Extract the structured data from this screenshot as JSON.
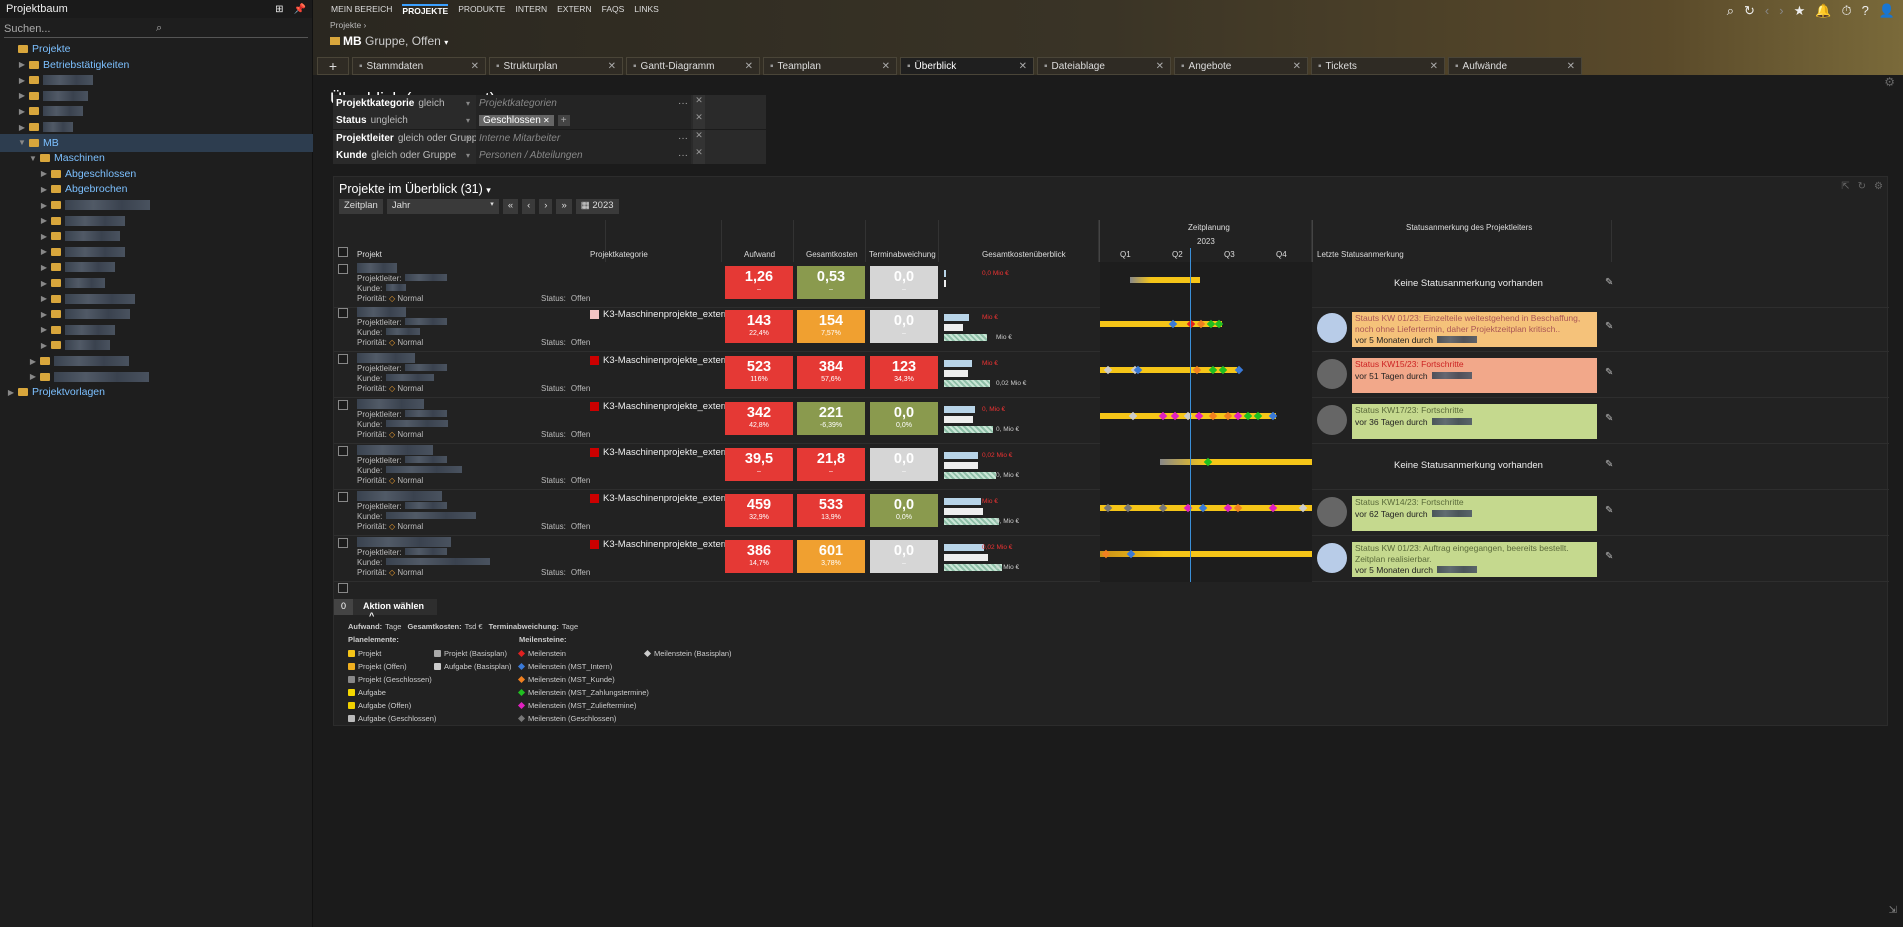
{
  "sidebar": {
    "title": "Projektbaum",
    "search_placeholder": "Suchen...",
    "items": [
      {
        "label": "Projekte",
        "indent": 0,
        "arrow": "",
        "blur": 0
      },
      {
        "label": "Betriebstätigkeiten",
        "indent": 1,
        "arrow": "▶",
        "blur": 0
      },
      {
        "label": "",
        "indent": 1,
        "arrow": "▶",
        "blur": 50
      },
      {
        "label": "",
        "indent": 1,
        "arrow": "▶",
        "blur": 45
      },
      {
        "label": "",
        "indent": 1,
        "arrow": "▶",
        "blur": 40
      },
      {
        "label": "",
        "indent": 1,
        "arrow": "▶",
        "blur": 30
      },
      {
        "label": "MB",
        "indent": 1,
        "arrow": "▼",
        "blur": 0,
        "selected": true
      },
      {
        "label": "Maschinen",
        "indent": 2,
        "arrow": "▼",
        "blur": 0
      },
      {
        "label": "Abgeschlossen",
        "indent": 3,
        "arrow": "▶",
        "blur": 0
      },
      {
        "label": "Abgebrochen",
        "indent": 3,
        "arrow": "▶",
        "blur": 0
      },
      {
        "label": "",
        "indent": 3,
        "arrow": "▶",
        "blur": 85
      },
      {
        "label": "",
        "indent": 3,
        "arrow": "▶",
        "blur": 60
      },
      {
        "label": "",
        "indent": 3,
        "arrow": "▶",
        "blur": 55
      },
      {
        "label": "",
        "indent": 3,
        "arrow": "▶",
        "blur": 60
      },
      {
        "label": "",
        "indent": 3,
        "arrow": "▶",
        "blur": 50
      },
      {
        "label": "",
        "indent": 3,
        "arrow": "▶",
        "blur": 40
      },
      {
        "label": "",
        "indent": 3,
        "arrow": "▶",
        "blur": 70
      },
      {
        "label": "",
        "indent": 3,
        "arrow": "▶",
        "blur": 65
      },
      {
        "label": "",
        "indent": 3,
        "arrow": "▶",
        "blur": 50
      },
      {
        "label": "",
        "indent": 3,
        "arrow": "▶",
        "blur": 45
      },
      {
        "label": "",
        "indent": 2,
        "arrow": "▶",
        "blur": 75
      },
      {
        "label": "",
        "indent": 2,
        "arrow": "▶",
        "blur": 95
      },
      {
        "label": "Projektvorlagen",
        "indent": 0,
        "arrow": "▶",
        "blur": 0
      }
    ]
  },
  "topbar": {
    "menu": [
      "MEIN BEREICH",
      "PROJEKTE",
      "PRODUKTE",
      "INTERN",
      "EXTERN",
      "FAQS",
      "LINKS"
    ],
    "active_menu": "PROJEKTE",
    "breadcrumb": "Projekte ›",
    "project_title": "MB",
    "project_sub": "Gruppe, Offen",
    "tabs": [
      "Stammdaten",
      "Strukturplan",
      "Gantt-Diagramm",
      "Teamplan",
      "Überblick",
      "Dateiablage",
      "Angebote",
      "Tickets",
      "Aufwände"
    ],
    "active_tab": "Überblick"
  },
  "page": {
    "title": "Überblick (angepasst)",
    "filters": [
      {
        "key": "Projektkategorie",
        "op": "gleich",
        "value": "Projektkategorien"
      },
      {
        "key": "Status",
        "op": "ungleich",
        "value": "",
        "chip": "Geschlossen"
      },
      {
        "key": "Projektleiter",
        "op": "gleich oder Gruppe",
        "value": "Interne Mitarbeiter"
      },
      {
        "key": "Kunde",
        "op": "gleich oder Gruppe",
        "value": "Personen / Abteilungen"
      }
    ]
  },
  "panel": {
    "title": "Projekte im Überblick (31)",
    "view_label": "Zeitplan",
    "period": "Jahr",
    "year": "2023",
    "headers": {
      "project": "Projekt",
      "category": "Projektkategorie",
      "effort": "Aufwand",
      "cost": "Gesamtkosten",
      "deviation": "Terminabweichung",
      "cost_overview": "Gesamtkostenüberblick",
      "timeline": "Zeitplanung",
      "timeline_year": "2023",
      "quarters": [
        "Q1",
        "Q2",
        "Q3",
        "Q4"
      ],
      "status_group": "Statusanmerkung des Projektleiters",
      "last_status": "Letzte Statusanmerkung"
    },
    "labels": {
      "leader": "Projektleiter:",
      "customer": "Kunde:",
      "priority": "Priorität:",
      "priority_val": "Normal",
      "status": "Status:",
      "status_val": "Offen"
    },
    "rows": [
      {
        "category": "",
        "cat_color": "",
        "effort": "1,26",
        "effort_sub": "–",
        "effort_color": "#e53935",
        "cost": "0,53",
        "cost_sub": "–",
        "cost_color": "#8a9a4e",
        "dev": "0,0",
        "dev_sub": "–",
        "dev_color": "#d6d6d6",
        "ovl": [
          "0,0 Mio €"
        ],
        "note": "Keine Statusanmerkung vorhanden",
        "note_color": "",
        "note_time": ""
      },
      {
        "category": "K3-Maschinenprojekte_extern...",
        "cat_color": "#f4c6c6",
        "effort": "143",
        "effort_sub": "22,4%",
        "effort_color": "#e53935",
        "cost": "154",
        "cost_sub": "7,57%",
        "cost_color": "#f0a030",
        "dev": "0,0",
        "dev_sub": "–",
        "dev_color": "#d6d6d6",
        "ovl": [
          "Mio €",
          "Mio €"
        ],
        "note": "Stauts KW 01/23: Einzelteile weitestgehend in Beschaffung, noch ohne Liefertermin, daher Projektzeitplan kritisch..",
        "note_color": "#f5c27a",
        "note_time": "vor 5 Monaten durch"
      },
      {
        "category": "K3-Maschinenprojekte_extern...",
        "cat_color": "#c00",
        "effort": "523",
        "effort_sub": "116%",
        "effort_color": "#e53935",
        "cost": "384",
        "cost_sub": "57,6%",
        "cost_color": "#e53935",
        "dev": "123",
        "dev_sub": "34,3%",
        "dev_color": "#e53935",
        "ovl": [
          "Mio €",
          "0,02 Mio €"
        ],
        "note": "Status KW15/23: Fortschritte",
        "note_color": "#f2a88a",
        "note_time": "vor 51 Tagen durch"
      },
      {
        "category": "K3-Maschinenprojekte_extern...",
        "cat_color": "#c00",
        "effort": "342",
        "effort_sub": "42,8%",
        "effort_color": "#e53935",
        "cost": "221",
        "cost_sub": "-6,39%",
        "cost_color": "#8a9a4e",
        "dev": "0,0",
        "dev_sub": "0,0%",
        "dev_color": "#8a9a4e",
        "ovl": [
          "0, Mio €",
          "0, Mio €"
        ],
        "note": "Status KW17/23: Fortschritte",
        "note_color": "#c5d98e",
        "note_time": "vor 36 Tagen durch"
      },
      {
        "category": "K3-Maschinenprojekte_extern...",
        "cat_color": "#c00",
        "effort": "39,5",
        "effort_sub": "–",
        "effort_color": "#e53935",
        "cost": "21,8",
        "cost_sub": "–",
        "cost_color": "#e53935",
        "dev": "0,0",
        "dev_sub": "–",
        "dev_color": "#d6d6d6",
        "ovl": [
          "0,02 Mio €",
          "0, Mio €"
        ],
        "note": "Keine Statusanmerkung vorhanden",
        "note_color": "",
        "note_time": ""
      },
      {
        "category": "K3-Maschinenprojekte_extern...",
        "cat_color": "#c00",
        "effort": "459",
        "effort_sub": "32,9%",
        "effort_color": "#e53935",
        "cost": "533",
        "cost_sub": "13,9%",
        "cost_color": "#e53935",
        "dev": "0,0",
        "dev_sub": "0,0%",
        "dev_color": "#8a9a4e",
        "ovl": [
          "Mio €",
          "0, Mio €"
        ],
        "note": "Status KW14/23: Fortschritte",
        "note_color": "#c5d98e",
        "note_time": "vor 62 Tagen durch"
      },
      {
        "category": "K3-Maschinenprojekte_extern...",
        "cat_color": "#c00",
        "effort": "386",
        "effort_sub": "14,7%",
        "effort_color": "#e53935",
        "cost": "601",
        "cost_sub": "3,78%",
        "cost_color": "#f0a030",
        "dev": "0,0",
        "dev_sub": "–",
        "dev_color": "#d6d6d6",
        "ovl": [
          "0,02 Mio €",
          "0, Mio €"
        ],
        "note": "Status KW 01/23: Auftrag eingegangen, beereits bestellt. Zeitplan realisierbar.",
        "note_color": "#c5d98e",
        "note_time": "vor 5 Monaten durch"
      }
    ],
    "action_count": "0",
    "action_label": "Aktion wählen",
    "legend": {
      "units": [
        {
          "k": "Aufwand:",
          "v": "Tage"
        },
        {
          "k": "Gesamtkosten:",
          "v": "Tsd €"
        },
        {
          "k": "Terminabweichung:",
          "v": "Tage"
        }
      ],
      "plan_title": "Planelemente:",
      "ms_title": "Meilensteine:",
      "plan": [
        {
          "l": "Projekt",
          "c": "#f5c518"
        },
        {
          "l": "Projekt (Offen)",
          "c": "#f0b020"
        },
        {
          "l": "Projekt (Geschlossen)",
          "c": "#888"
        },
        {
          "l": "Aufgabe",
          "c": "#f5d800"
        },
        {
          "l": "Aufgabe (Offen)",
          "c": "#f0d000"
        },
        {
          "l": "Aufgabe (Geschlossen)",
          "c": "#bbb"
        }
      ],
      "plan2": [
        {
          "l": "Projekt (Basisplan)",
          "c": "#aaa"
        },
        {
          "l": "Aufgabe (Basisplan)",
          "c": "#ccc"
        }
      ],
      "ms": [
        {
          "l": "Meilenstein",
          "c": "#e02020"
        },
        {
          "l": "Meilenstein (MST_Intern)",
          "c": "#3a7ad8"
        },
        {
          "l": "Meilenstein (MST_Kunde)",
          "c": "#f08020"
        },
        {
          "l": "Meilenstein (MST_Zahlungstermine)",
          "c": "#20c020"
        },
        {
          "l": "Meilenstein (MST_Zulieftermine)",
          "c": "#e020c0"
        },
        {
          "l": "Meilenstein (Geschlossen)",
          "c": "#777"
        }
      ],
      "ms2": [
        {
          "l": "Meilenstein (Basisplan)",
          "c": "#ccc"
        }
      ]
    }
  }
}
